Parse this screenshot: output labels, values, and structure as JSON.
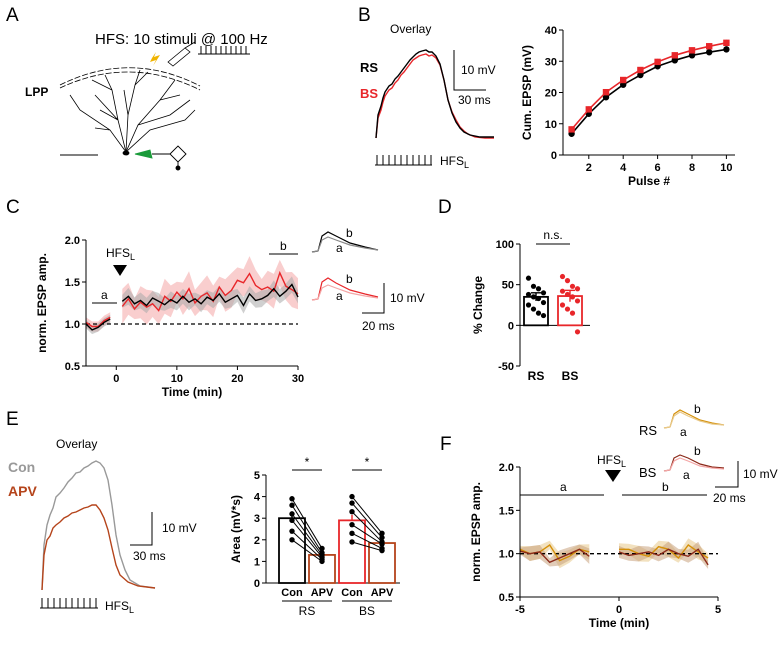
{
  "panels": {
    "A": "A",
    "B": "B",
    "C": "C",
    "D": "D",
    "E": "E",
    "F": "F"
  },
  "colors": {
    "rs": "#000000",
    "bs": "#e8262a",
    "bs_fill": "#f4a6a6",
    "con": "#999999",
    "apv": "#b5441b",
    "rs_f": "#d4900a",
    "bs_f": "#8b2a1a",
    "f_fill": "#e8c98a"
  },
  "panelA": {
    "title": "HFS: 10 stimuli @ 100 Hz",
    "lpp": "LPP"
  },
  "panelB": {
    "overlay": "Overlay",
    "rs": "RS",
    "bs": "BS",
    "scale_y": "10 mV",
    "scale_x": "30 ms",
    "hfs": "HFS",
    "hfs_sub": "L"
  },
  "panelE": {
    "overlay": "Overlay",
    "con": "Con",
    "apv": "APV",
    "scale_y": "10 mV",
    "scale_x": "30 ms",
    "hfs": "HFS",
    "hfs_sub": "L"
  },
  "panelC_ann": {
    "hfs": "HFS",
    "hfs_sub": "L",
    "a": "a",
    "b": "b",
    "scale_y": "10 mV",
    "scale_x": "20 ms"
  },
  "panelF_ann": {
    "hfs": "HFS",
    "hfs_sub": "L",
    "a": "a",
    "b": "b",
    "rs": "RS",
    "bs": "BS",
    "scale_y": "10 mV",
    "scale_x": "20 ms"
  },
  "chart_data": [
    {
      "id": "B-right",
      "type": "line",
      "title": "",
      "xlabel": "Pulse #",
      "ylabel": "Cum. EPSP (mV)",
      "xlim": [
        0.5,
        10.5
      ],
      "ylim": [
        0,
        40
      ],
      "xticks": [
        2,
        4,
        6,
        8,
        10
      ],
      "yticks": [
        0,
        10,
        20,
        30,
        40
      ],
      "categories": [
        1,
        2,
        3,
        4,
        5,
        6,
        7,
        8,
        9,
        10
      ],
      "series": [
        {
          "name": "RS",
          "values": [
            6.8,
            13.2,
            18.5,
            22.5,
            25.6,
            28.4,
            30.3,
            31.9,
            32.9,
            33.8
          ]
        },
        {
          "name": "BS",
          "values": [
            8.2,
            14.6,
            20.1,
            24.0,
            27.2,
            29.8,
            31.9,
            33.5,
            34.8,
            35.9
          ]
        }
      ]
    },
    {
      "id": "C",
      "type": "line",
      "xlabel": "Time (min)",
      "ylabel": "norm. EPSP amp.",
      "xlim": [
        -5,
        30
      ],
      "ylim": [
        0.5,
        2.0
      ],
      "xticks": [
        0,
        10,
        20,
        30
      ],
      "yticks": [
        0.5,
        1.0,
        1.5,
        2.0
      ],
      "baseline": 1.0,
      "period_a": [
        -5,
        -1
      ],
      "period_b": [
        26,
        30
      ],
      "x": [
        -5,
        -4,
        -3,
        -2,
        -1,
        1,
        2,
        3,
        4,
        5,
        6,
        7,
        8,
        9,
        10,
        11,
        12,
        13,
        14,
        15,
        16,
        17,
        18,
        19,
        20,
        21,
        22,
        23,
        24,
        25,
        26,
        27,
        28,
        29,
        30
      ],
      "series": [
        {
          "name": "RS",
          "values": [
            1.0,
            0.93,
            0.96,
            1.02,
            1.06,
            1.27,
            1.33,
            1.24,
            1.28,
            1.22,
            1.31,
            1.27,
            1.23,
            1.29,
            1.25,
            1.33,
            1.26,
            1.3,
            1.24,
            1.32,
            1.28,
            1.36,
            1.26,
            1.3,
            1.34,
            1.22,
            1.36,
            1.28,
            1.3,
            1.34,
            1.42,
            1.33,
            1.39,
            1.47,
            1.32
          ]
        },
        {
          "name": "BS",
          "values": [
            1.02,
            0.97,
            0.97,
            1.04,
            1.08,
            1.21,
            1.3,
            1.18,
            1.26,
            1.2,
            1.24,
            1.16,
            1.33,
            1.27,
            1.38,
            1.3,
            1.42,
            1.25,
            1.33,
            1.37,
            1.27,
            1.44,
            1.34,
            1.4,
            1.52,
            1.49,
            1.6,
            1.46,
            1.41,
            1.44,
            1.39,
            1.61,
            1.45,
            1.41,
            1.36
          ]
        }
      ]
    },
    {
      "id": "D",
      "type": "bar",
      "title": "n.s.",
      "xlabel": "",
      "ylabel": "% Change",
      "ylim": [
        -50,
        100
      ],
      "yticks": [
        -50,
        0,
        50,
        100
      ],
      "categories": [
        "RS",
        "BS"
      ],
      "values": [
        35,
        36
      ],
      "sem": [
        5,
        7
      ],
      "points": [
        [
          58,
          48,
          45,
          40,
          38,
          35,
          33,
          28,
          25,
          20,
          15,
          12
        ],
        [
          60,
          55,
          48,
          45,
          42,
          38,
          35,
          30,
          25,
          20,
          15,
          -8
        ]
      ]
    },
    {
      "id": "E-right",
      "type": "bar",
      "xlabel": "",
      "ylabel": "Area (mV*s)",
      "ylim": [
        0,
        5
      ],
      "yticks": [
        0,
        1,
        2,
        3,
        4,
        5
      ],
      "categories": [
        "Con",
        "APV",
        "Con",
        "APV"
      ],
      "groups": [
        "RS",
        "BS"
      ],
      "values": [
        3.0,
        1.3,
        2.9,
        1.85
      ],
      "significance": [
        "*",
        "*"
      ],
      "pairs": [
        [
          [
            3.9,
            1.6
          ],
          [
            3.6,
            1.4
          ],
          [
            3.2,
            1.3
          ],
          [
            2.9,
            1.2
          ],
          [
            2.4,
            1.1
          ],
          [
            2.0,
            1.0
          ]
        ],
        [
          [
            4.0,
            2.3
          ],
          [
            3.7,
            2.1
          ],
          [
            3.3,
            1.9
          ],
          [
            2.7,
            1.8
          ],
          [
            2.3,
            1.6
          ],
          [
            1.9,
            1.5
          ]
        ]
      ]
    },
    {
      "id": "F",
      "type": "line",
      "xlabel": "Time (min)",
      "ylabel": "norm. EPSP amp.",
      "xlim": [
        -5,
        5
      ],
      "ylim": [
        0.5,
        2.0
      ],
      "xticks": [
        -5,
        0,
        5
      ],
      "yticks": [
        0.5,
        1.0,
        1.5,
        2.0
      ],
      "baseline": 1.0,
      "period_a": [
        -5,
        -1
      ],
      "period_b": [
        0,
        4.5
      ],
      "x": [
        -5,
        -4.5,
        -4,
        -3.5,
        -3,
        -2.5,
        -2,
        -1.5,
        0,
        0.5,
        1,
        1.5,
        2,
        2.5,
        3,
        3.5,
        4,
        4.5
      ],
      "series": [
        {
          "name": "RS",
          "values": [
            1.05,
            1.0,
            1.02,
            1.1,
            0.92,
            0.97,
            1.05,
            1.02,
            1.05,
            1.05,
            1.0,
            0.97,
            1.08,
            1.05,
            0.95,
            1.1,
            1.02,
            0.95
          ]
        },
        {
          "name": "BS",
          "values": [
            1.03,
            1.0,
            1.02,
            0.9,
            0.95,
            1.0,
            1.05,
            0.97,
            1.02,
            0.98,
            1.0,
            1.02,
            0.98,
            1.05,
            1.0,
            0.97,
            1.05,
            0.87
          ]
        }
      ]
    }
  ]
}
